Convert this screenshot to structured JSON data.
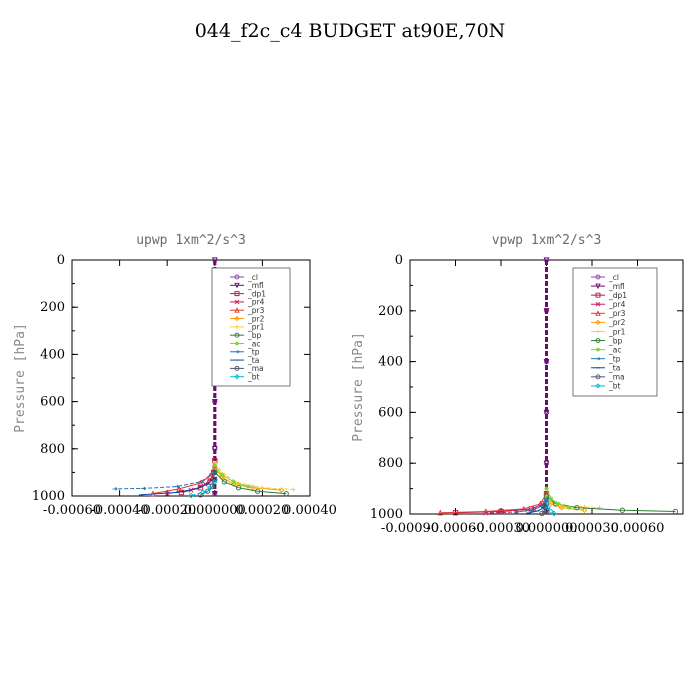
{
  "figure_title": "044_f2c_c4  BUDGET at90E,70N",
  "chart_data": [
    {
      "type": "line",
      "title": "upwp   1xm^2/s^3",
      "ylabel": "Pressure [hPa]",
      "xlabel": "",
      "xlim": [
        -0.0006,
        0.0004
      ],
      "ylim": [
        1000,
        0
      ],
      "xticks": [
        -0.0006,
        -0.0004,
        -0.0002,
        0.0,
        0.0002,
        0.0004
      ],
      "xtick_labels": [
        "-0.00060",
        "-0.00040",
        "-0.00020",
        "0.000000",
        "0.00020",
        "0.00040"
      ],
      "yticks": [
        0,
        200,
        400,
        600,
        800,
        1000
      ],
      "ytick_labels": [
        "0",
        "200",
        "400",
        "600",
        "800",
        "1000"
      ],
      "legend_position": "top-right",
      "series": [
        {
          "name": "_cl",
          "color": "#8e44ad",
          "x": [
            0,
            0,
            0,
            0,
            0,
            0
          ],
          "y": [
            0,
            200,
            400,
            600,
            800,
            990
          ]
        },
        {
          "name": "_mfl",
          "color": "#6a0f6a",
          "x": [
            0,
            0,
            0,
            0,
            0,
            0
          ],
          "y": [
            0,
            200,
            400,
            600,
            800,
            990
          ]
        },
        {
          "name": "_dp1",
          "color": "#b0174e",
          "x": [
            0,
            -5e-06,
            -2e-05,
            -6e-05,
            -0.00014
          ],
          "y": [
            850,
            900,
            940,
            965,
            985
          ]
        },
        {
          "name": "_pr4",
          "color": "#c2185b",
          "x": [
            0,
            -1e-05,
            -4e-05,
            -0.0001,
            -0.0002
          ],
          "y": [
            880,
            920,
            950,
            975,
            990
          ]
        },
        {
          "name": "_pr3",
          "color": "#e53935",
          "x": [
            0,
            -2e-05,
            -6e-05,
            -0.00015,
            -0.00026
          ],
          "y": [
            870,
            915,
            945,
            970,
            990
          ]
        },
        {
          "name": "_pr2",
          "color": "#ff9800",
          "x": [
            0,
            3e-05,
            8e-05,
            0.00016,
            0.00028
          ],
          "y": [
            880,
            920,
            950,
            965,
            975
          ]
        },
        {
          "name": "_pr1",
          "color": "#f4d03f",
          "x": [
            0,
            4e-05,
            0.0001,
            0.0002,
            0.00033
          ],
          "y": [
            860,
            910,
            945,
            965,
            972
          ]
        },
        {
          "name": "_bp",
          "color": "#2e7d32",
          "x": [
            0,
            4e-05,
            0.0001,
            0.00018,
            0.0003
          ],
          "y": [
            900,
            940,
            965,
            980,
            990
          ]
        },
        {
          "name": "_ac",
          "color": "#7cd42a",
          "x": [
            0,
            3e-05,
            8e-05,
            0.00014
          ],
          "y": [
            870,
            910,
            940,
            960
          ]
        },
        {
          "name": "_tp",
          "color": "#1f77b4",
          "x": [
            0,
            -6e-05,
            -0.00016,
            -0.0003,
            -0.00042
          ],
          "y": [
            900,
            940,
            960,
            968,
            970
          ]
        },
        {
          "name": "_ta",
          "color": "#0d47a1",
          "x": [
            0,
            -3e-05,
            -8e-05,
            -0.00016,
            -0.00031
          ],
          "y": [
            920,
            950,
            970,
            985,
            995
          ]
        },
        {
          "name": "_ma",
          "color": "#455a64",
          "x": [
            0,
            -1e-05,
            -3e-05,
            -6e-05
          ],
          "y": [
            930,
            960,
            980,
            995
          ]
        },
        {
          "name": "_bt",
          "color": "#00bcd4",
          "x": [
            0,
            -2e-05,
            -5e-05,
            -0.0001
          ],
          "y": [
            940,
            965,
            985,
            998
          ]
        }
      ]
    },
    {
      "type": "line",
      "title": "vpwp   1xm^2/s^3",
      "ylabel": "Pressure [hPa]",
      "xlabel": "",
      "xlim": [
        -0.0009,
        0.0009
      ],
      "ylim": [
        1000,
        0
      ],
      "xticks": [
        -0.0009,
        -0.0006,
        -0.0003,
        0.0,
        0.0003,
        0.0006
      ],
      "xtick_labels": [
        "-0.00090",
        "-0.00060",
        "-0.00030",
        "0.000000",
        "0.00030",
        "0.00060"
      ],
      "yticks": [
        0,
        200,
        400,
        600,
        800,
        1000
      ],
      "ytick_labels": [
        "0",
        "200",
        "400",
        "600",
        "800",
        "1000"
      ],
      "legend_position": "top-right",
      "series": [
        {
          "name": "_cl",
          "color": "#8e44ad",
          "x": [
            0,
            0,
            0,
            0,
            0,
            0
          ],
          "y": [
            0,
            200,
            400,
            600,
            800,
            990
          ]
        },
        {
          "name": "_mfl",
          "color": "#6a0f6a",
          "x": [
            0,
            0,
            0,
            0,
            0,
            0
          ],
          "y": [
            0,
            200,
            400,
            600,
            800,
            990
          ]
        },
        {
          "name": "_dp1",
          "color": "#b0174e",
          "x": [
            0,
            -2e-05,
            -0.0001,
            -0.0003,
            -0.0006
          ],
          "y": [
            920,
            960,
            980,
            990,
            995
          ]
        },
        {
          "name": "_pr4",
          "color": "#c2185b",
          "x": [
            0,
            -2e-05,
            -8e-05,
            -0.0002,
            -0.0004
          ],
          "y": [
            930,
            965,
            982,
            992,
            996
          ]
        },
        {
          "name": "_pr3",
          "color": "#e53935",
          "x": [
            0,
            -4e-05,
            -0.00015,
            -0.0004,
            -0.0007
          ],
          "y": [
            920,
            960,
            980,
            990,
            995
          ]
        },
        {
          "name": "_pr2",
          "color": "#ff9800",
          "x": [
            0,
            3e-05,
            0.0001,
            0.00025
          ],
          "y": [
            930,
            960,
            975,
            985
          ]
        },
        {
          "name": "_pr1",
          "color": "#f4d03f",
          "x": [
            0,
            4e-05,
            0.00012,
            0.00025,
            0.00035
          ],
          "y": [
            930,
            955,
            968,
            972,
            975
          ]
        },
        {
          "name": "_bp",
          "color": "#2e7d32",
          "x": [
            0,
            6e-05,
            0.0002,
            0.0005,
            0.00085
          ],
          "y": [
            930,
            960,
            975,
            985,
            990
          ]
        },
        {
          "name": "_ac",
          "color": "#7cd42a",
          "x": [
            0,
            3e-05,
            8e-05,
            0.00015
          ],
          "y": [
            900,
            940,
            960,
            975
          ]
        },
        {
          "name": "_tp",
          "color": "#1f77b4",
          "x": [
            0,
            -3e-05,
            -0.0001,
            -0.0002
          ],
          "y": [
            940,
            970,
            985,
            992
          ]
        },
        {
          "name": "_ta",
          "color": "#0d47a1",
          "x": [
            0,
            -2e-05,
            -6e-05,
            -0.00012
          ],
          "y": [
            950,
            975,
            988,
            996
          ]
        },
        {
          "name": "_ma",
          "color": "#455a64",
          "x": [
            0,
            -1e-05,
            -3e-05
          ],
          "y": [
            960,
            985,
            998
          ]
        },
        {
          "name": "_bt",
          "color": "#00bcd4",
          "x": [
            0,
            1e-05,
            3e-05,
            5e-05
          ],
          "y": [
            950,
            975,
            990,
            998
          ]
        }
      ]
    }
  ]
}
